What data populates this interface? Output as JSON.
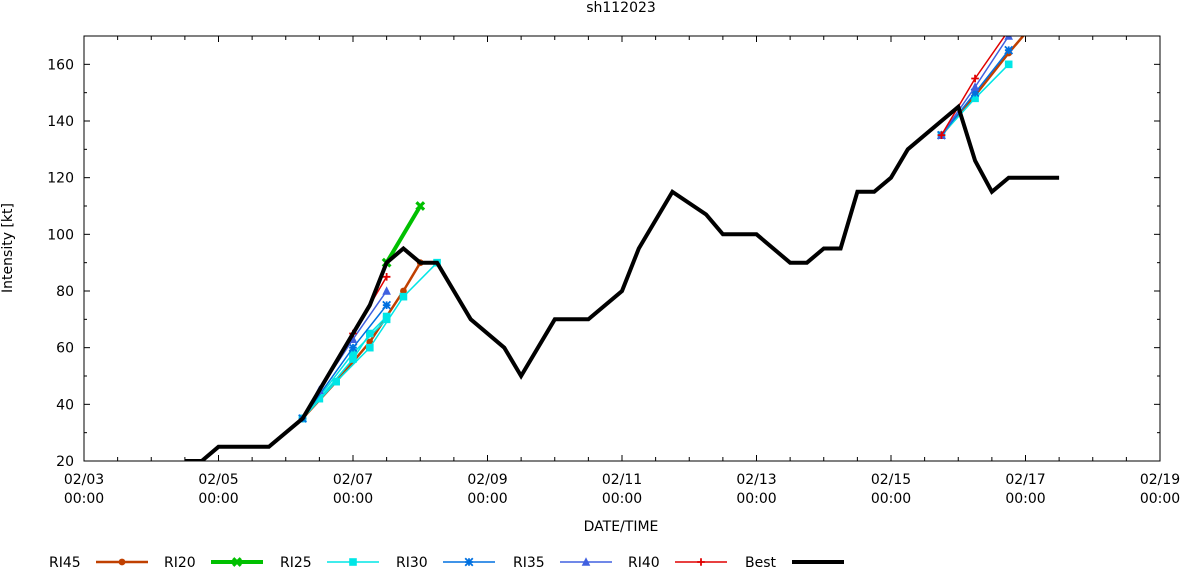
{
  "chart_data": {
    "type": "line",
    "title": "sh112023",
    "xlabel": "DATE/TIME",
    "ylabel": "Intensity [kt]",
    "xlim": [
      "2023-02-03 00:00",
      "2023-02-19 00:00"
    ],
    "ylim": [
      20,
      170
    ],
    "x_ticks": [
      {
        "x": "2023-02-03 00:00",
        "date": "02/03",
        "time": "00:00"
      },
      {
        "x": "2023-02-05 00:00",
        "date": "02/05",
        "time": "00:00"
      },
      {
        "x": "2023-02-07 00:00",
        "date": "02/07",
        "time": "00:00"
      },
      {
        "x": "2023-02-09 00:00",
        "date": "02/09",
        "time": "00:00"
      },
      {
        "x": "2023-02-11 00:00",
        "date": "02/11",
        "time": "00:00"
      },
      {
        "x": "2023-02-13 00:00",
        "date": "02/13",
        "time": "00:00"
      },
      {
        "x": "2023-02-15 00:00",
        "date": "02/15",
        "time": "00:00"
      },
      {
        "x": "2023-02-17 00:00",
        "date": "02/17",
        "time": "00:00"
      },
      {
        "x": "2023-02-19 00:00",
        "date": "02/19",
        "time": "00:00"
      }
    ],
    "y_ticks": [
      20,
      40,
      60,
      80,
      100,
      120,
      140,
      160
    ],
    "grid": false,
    "legend_position": "bottom",
    "series": [
      {
        "name": "RI45",
        "color": "#c04000",
        "marker": "circle",
        "width": 2.5,
        "segments": [
          [
            [
              "2023-02-06 06:00",
              35
            ],
            [
              "2023-02-06 18:00",
              48
            ],
            [
              "2023-02-07 06:00",
              62
            ],
            [
              "2023-02-07 18:00",
              80
            ],
            [
              "2023-02-08 00:00",
              90
            ]
          ],
          [
            [
              "2023-02-15 18:00",
              135
            ],
            [
              "2023-02-16 06:00",
              149
            ],
            [
              "2023-02-16 18:00",
              164
            ],
            [
              "2023-02-17 00:00",
              171
            ]
          ]
        ]
      },
      {
        "name": "RI20",
        "color": "#00c000",
        "marker": "x",
        "width": 4,
        "segments": [
          [
            [
              "2023-02-07 12:00",
              90
            ],
            [
              "2023-02-08 00:00",
              110
            ]
          ]
        ]
      },
      {
        "name": "RI25",
        "color": "#00e6e6",
        "marker": "square",
        "width": 1.5,
        "segments": [
          [
            [
              "2023-02-06 06:00",
              35
            ],
            [
              "2023-02-06 18:00",
              48
            ],
            [
              "2023-02-07 06:00",
              60
            ],
            [
              "2023-02-07 18:00",
              78
            ],
            [
              "2023-02-08 06:00",
              90
            ]
          ],
          [
            [
              "2023-02-06 06:00",
              35
            ],
            [
              "2023-02-07 00:00",
              58
            ],
            [
              "2023-02-07 12:00",
              70
            ]
          ],
          [
            [
              "2023-02-06 12:00",
              42
            ],
            [
              "2023-02-07 00:00",
              56
            ],
            [
              "2023-02-07 06:00",
              65
            ],
            [
              "2023-02-07 12:00",
              71
            ]
          ],
          [
            [
              "2023-02-15 18:00",
              135
            ],
            [
              "2023-02-16 06:00",
              148
            ],
            [
              "2023-02-16 18:00",
              160
            ]
          ]
        ]
      },
      {
        "name": "RI30",
        "color": "#0070e0",
        "marker": "star",
        "width": 1.5,
        "segments": [
          [
            [
              "2023-02-06 06:00",
              35
            ],
            [
              "2023-02-07 00:00",
              60
            ],
            [
              "2023-02-07 12:00",
              75
            ]
          ],
          [
            [
              "2023-02-15 18:00",
              135
            ],
            [
              "2023-02-16 06:00",
              150
            ],
            [
              "2023-02-16 18:00",
              165
            ]
          ]
        ]
      },
      {
        "name": "RI35",
        "color": "#4060e0",
        "marker": "triangle",
        "width": 1.5,
        "segments": [
          [
            [
              "2023-02-06 12:00",
              45
            ],
            [
              "2023-02-07 00:00",
              63
            ],
            [
              "2023-02-07 12:00",
              80
            ]
          ],
          [
            [
              "2023-02-15 18:00",
              135
            ],
            [
              "2023-02-16 06:00",
              152
            ],
            [
              "2023-02-16 18:00",
              170
            ]
          ]
        ]
      },
      {
        "name": "RI40",
        "color": "#e00000",
        "marker": "plus",
        "width": 1.5,
        "segments": [
          [
            [
              "2023-02-07 00:00",
              65
            ],
            [
              "2023-02-07 12:00",
              85
            ]
          ],
          [
            [
              "2023-02-15 18:00",
              135
            ],
            [
              "2023-02-16 06:00",
              155
            ],
            [
              "2023-02-16 18:00",
              172
            ]
          ]
        ]
      },
      {
        "name": "Best",
        "color": "#000000",
        "marker": "none",
        "width": 4,
        "segments": [
          [
            [
              "2023-02-04 12:00",
              20
            ],
            [
              "2023-02-04 18:00",
              20
            ],
            [
              "2023-02-05 00:00",
              25
            ],
            [
              "2023-02-05 06:00",
              25
            ],
            [
              "2023-02-05 12:00",
              25
            ],
            [
              "2023-02-05 18:00",
              25
            ],
            [
              "2023-02-06 06:00",
              35
            ],
            [
              "2023-02-06 18:00",
              55
            ],
            [
              "2023-02-07 06:00",
              75
            ],
            [
              "2023-02-07 12:00",
              90
            ],
            [
              "2023-02-07 18:00",
              95
            ],
            [
              "2023-02-08 00:00",
              90
            ],
            [
              "2023-02-08 06:00",
              90
            ],
            [
              "2023-02-08 18:00",
              70
            ],
            [
              "2023-02-09 06:00",
              60
            ],
            [
              "2023-02-09 12:00",
              50
            ],
            [
              "2023-02-10 00:00",
              70
            ],
            [
              "2023-02-10 12:00",
              70
            ],
            [
              "2023-02-11 00:00",
              80
            ],
            [
              "2023-02-11 06:00",
              95
            ],
            [
              "2023-02-11 18:00",
              115
            ],
            [
              "2023-02-12 06:00",
              107
            ],
            [
              "2023-02-12 12:00",
              100
            ],
            [
              "2023-02-13 00:00",
              100
            ],
            [
              "2023-02-13 12:00",
              90
            ],
            [
              "2023-02-13 18:00",
              90
            ],
            [
              "2023-02-14 00:00",
              95
            ],
            [
              "2023-02-14 06:00",
              95
            ],
            [
              "2023-02-14 12:00",
              115
            ],
            [
              "2023-02-14 18:00",
              115
            ],
            [
              "2023-02-15 00:00",
              120
            ],
            [
              "2023-02-15 06:00",
              130
            ],
            [
              "2023-02-15 18:00",
              140
            ],
            [
              "2023-02-16 00:00",
              145
            ],
            [
              "2023-02-16 06:00",
              126
            ],
            [
              "2023-02-16 12:00",
              115
            ],
            [
              "2023-02-16 18:00",
              120
            ],
            [
              "2023-02-17 06:00",
              120
            ],
            [
              "2023-02-17 12:00",
              120
            ]
          ]
        ]
      }
    ]
  }
}
